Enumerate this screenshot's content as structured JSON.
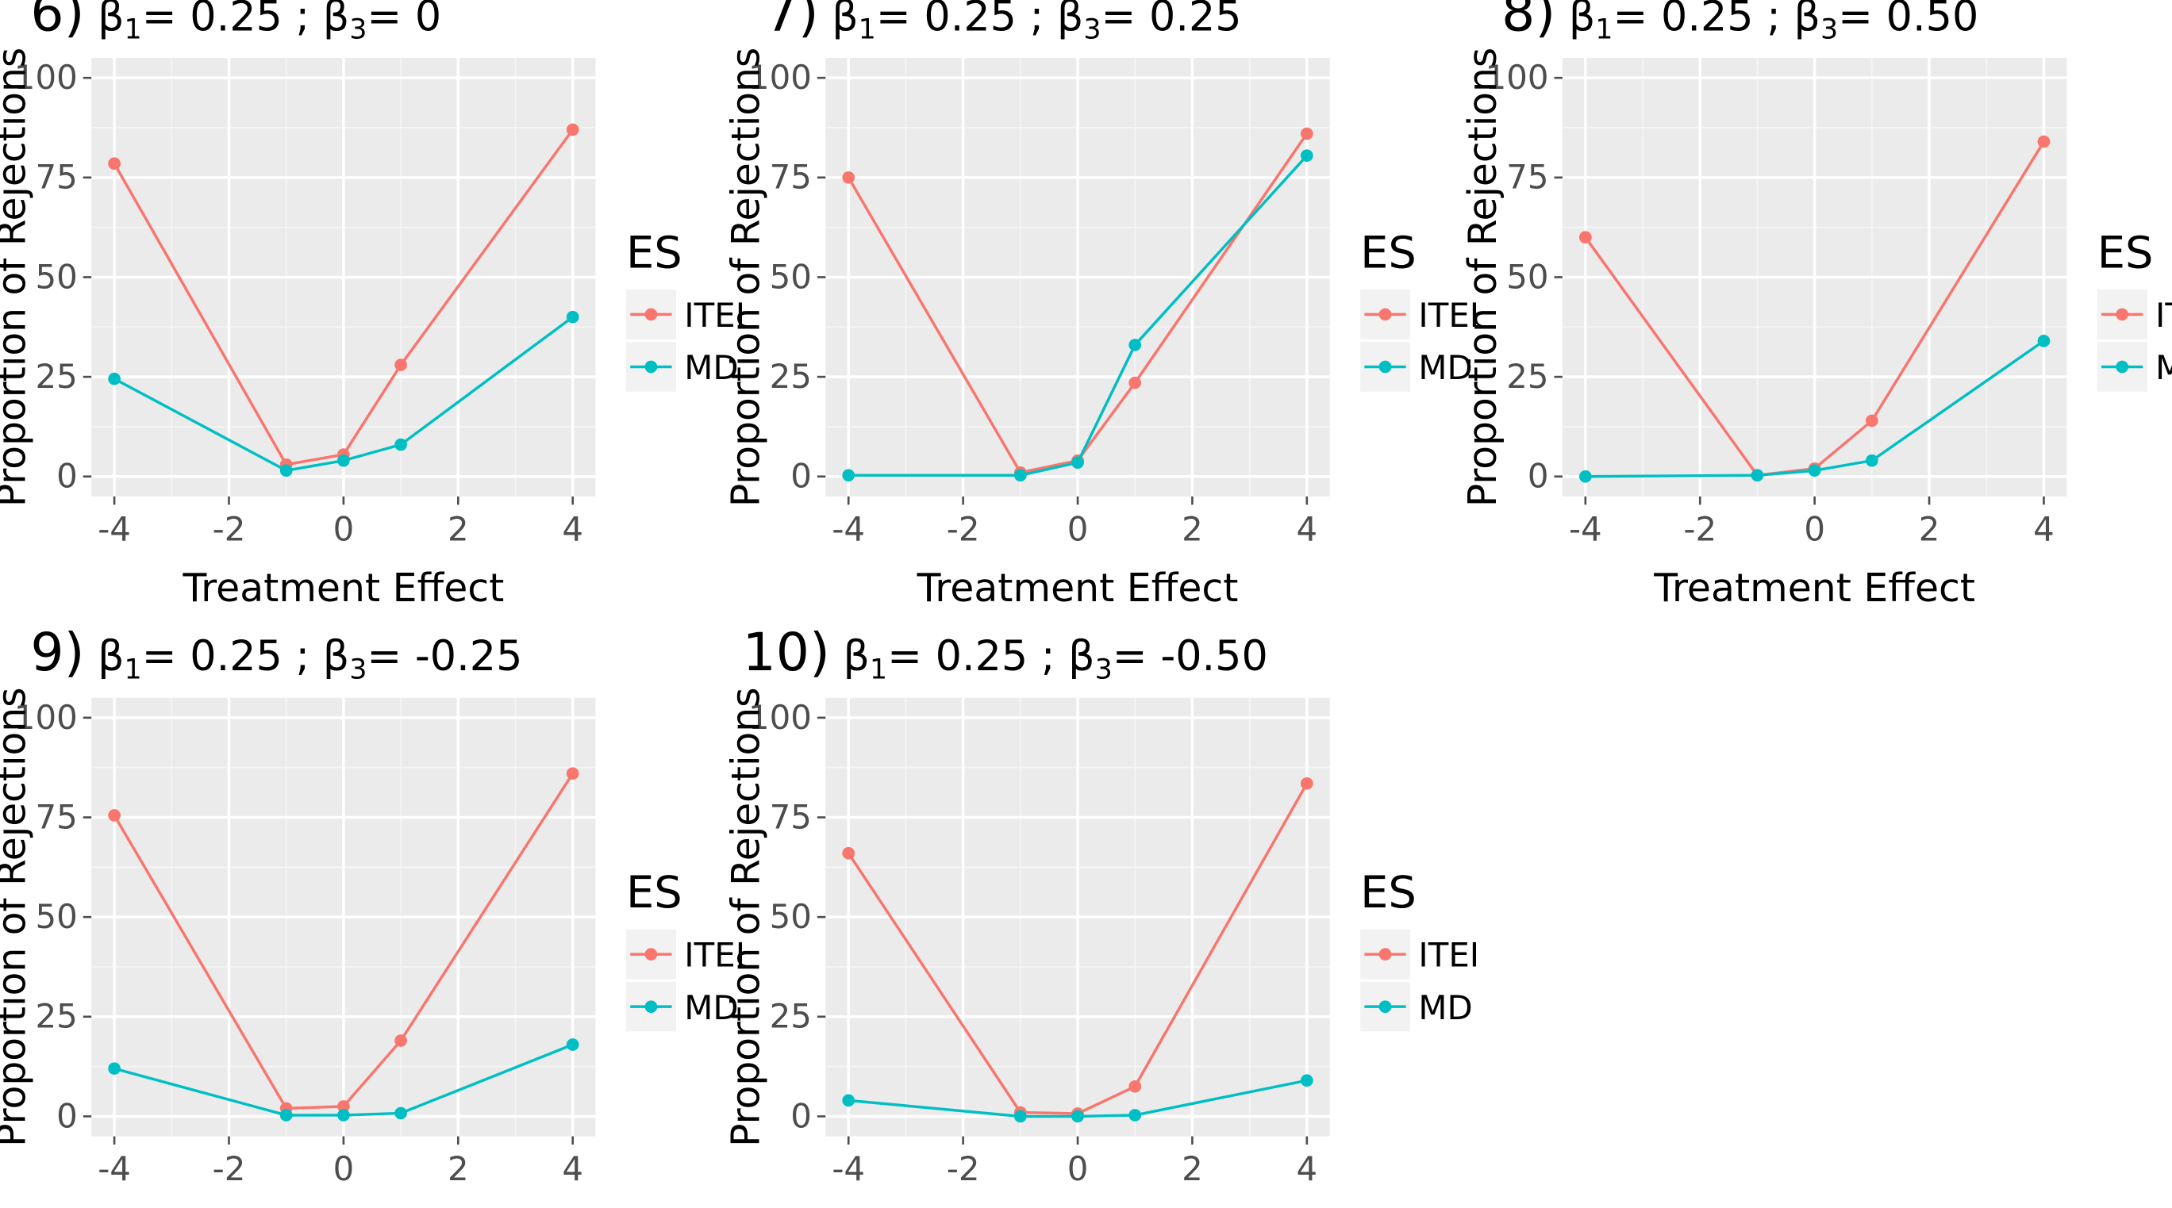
{
  "figure": {
    "legend_title": "ES",
    "xlabel": "Treatment Effect",
    "ylabel": "Proportion of Rejections"
  },
  "series_colors": {
    "ITEI": "#F8766D",
    "MD": "#00BFC4"
  },
  "chart_data": [
    {
      "type": "line",
      "title": {
        "num": "6)",
        "b1": "β",
        "b1sub": "1",
        "b1val": "= 0.25 ; ",
        "b3": "β",
        "b3sub": "3",
        "b3val": "= 0"
      },
      "x": [
        -4,
        -1,
        0,
        1,
        4
      ],
      "xticks": [
        "-4",
        "-2",
        "0",
        "2",
        "4"
      ],
      "yticks": [
        "0",
        "25",
        "50",
        "75",
        "100"
      ],
      "xlim": [
        -4.4,
        4.4
      ],
      "ylim": [
        -5,
        105
      ],
      "legend": [
        "ITEI",
        "MD"
      ],
      "series": [
        {
          "name": "ITEI",
          "values": [
            78.5,
            3,
            5.5,
            28,
            87
          ]
        },
        {
          "name": "MD",
          "values": [
            24.5,
            1.5,
            4,
            8,
            40
          ]
        }
      ]
    },
    {
      "type": "line",
      "title": {
        "num": "7)",
        "b1": "β",
        "b1sub": "1",
        "b1val": "= 0.25 ; ",
        "b3": "β",
        "b3sub": "3",
        "b3val": "= 0.25"
      },
      "x": [
        -4,
        -1,
        0,
        1,
        4
      ],
      "xticks": [
        "-4",
        "-2",
        "0",
        "2",
        "4"
      ],
      "yticks": [
        "0",
        "25",
        "50",
        "75",
        "100"
      ],
      "xlim": [
        -4.4,
        4.4
      ],
      "ylim": [
        -5,
        105
      ],
      "legend": [
        "ITEI",
        "MD"
      ],
      "series": [
        {
          "name": "ITEI",
          "values": [
            75,
            1,
            4,
            23.5,
            86
          ]
        },
        {
          "name": "MD",
          "values": [
            0.3,
            0.3,
            3.5,
            33,
            80.5
          ]
        }
      ]
    },
    {
      "type": "line",
      "title": {
        "num": "8)",
        "b1": "β",
        "b1sub": "1",
        "b1val": "= 0.25 ; ",
        "b3": "β",
        "b3sub": "3",
        "b3val": "= 0.50"
      },
      "x": [
        -4,
        -1,
        0,
        1,
        4
      ],
      "xticks": [
        "-4",
        "-2",
        "0",
        "2",
        "4"
      ],
      "yticks": [
        "0",
        "25",
        "50",
        "75",
        "100"
      ],
      "xlim": [
        -4.4,
        4.4
      ],
      "ylim": [
        -5,
        105
      ],
      "legend": [
        "ITEI",
        "MD"
      ],
      "series": [
        {
          "name": "ITEI",
          "values": [
            60,
            0.3,
            2,
            14,
            84
          ]
        },
        {
          "name": "MD",
          "values": [
            0,
            0.3,
            1.5,
            4,
            34
          ]
        }
      ]
    },
    {
      "type": "line",
      "title": {
        "num": "9)",
        "b1": "β",
        "b1sub": "1",
        "b1val": "= 0.25 ; ",
        "b3": "β",
        "b3sub": "3",
        "b3val": "= -0.25"
      },
      "x": [
        -4,
        -1,
        0,
        1,
        4
      ],
      "xticks": [
        "-4",
        "-2",
        "0",
        "2",
        "4"
      ],
      "yticks": [
        "0",
        "25",
        "50",
        "75",
        "100"
      ],
      "xlim": [
        -4.4,
        4.4
      ],
      "ylim": [
        -5,
        105
      ],
      "legend": [
        "ITEI",
        "MD"
      ],
      "series": [
        {
          "name": "ITEI",
          "values": [
            75.5,
            2,
            2.5,
            19,
            86
          ]
        },
        {
          "name": "MD",
          "values": [
            12,
            0.3,
            0.3,
            0.8,
            18
          ]
        }
      ]
    },
    {
      "type": "line",
      "title": {
        "num": "10)",
        "b1": "β",
        "b1sub": "1",
        "b1val": "= 0.25 ; ",
        "b3": "β",
        "b3sub": "3",
        "b3val": "= -0.50"
      },
      "x": [
        -4,
        -1,
        0,
        1,
        4
      ],
      "xticks": [
        "-4",
        "-2",
        "0",
        "2",
        "4"
      ],
      "yticks": [
        "0",
        "25",
        "50",
        "75",
        "100"
      ],
      "xlim": [
        -4.4,
        4.4
      ],
      "ylim": [
        -5,
        105
      ],
      "legend": [
        "ITEI",
        "MD"
      ],
      "series": [
        {
          "name": "ITEI",
          "values": [
            66,
            1,
            0.7,
            7.5,
            83.5
          ]
        },
        {
          "name": "MD",
          "values": [
            4,
            0,
            0,
            0.3,
            9
          ]
        }
      ]
    }
  ]
}
